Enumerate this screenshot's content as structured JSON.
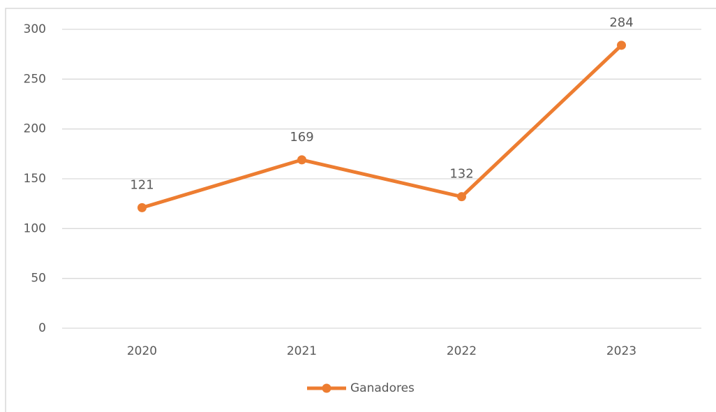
{
  "chart_data": {
    "type": "line",
    "categories": [
      "2020",
      "2021",
      "2022",
      "2023"
    ],
    "series": [
      {
        "name": "Ganadores",
        "color": "#ed7d31",
        "values": [
          121,
          169,
          132,
          284
        ]
      }
    ],
    "ylim": [
      0,
      300
    ],
    "yticks": [
      0,
      50,
      100,
      150,
      200,
      250,
      300
    ],
    "grid": true,
    "legend": "bottom"
  }
}
